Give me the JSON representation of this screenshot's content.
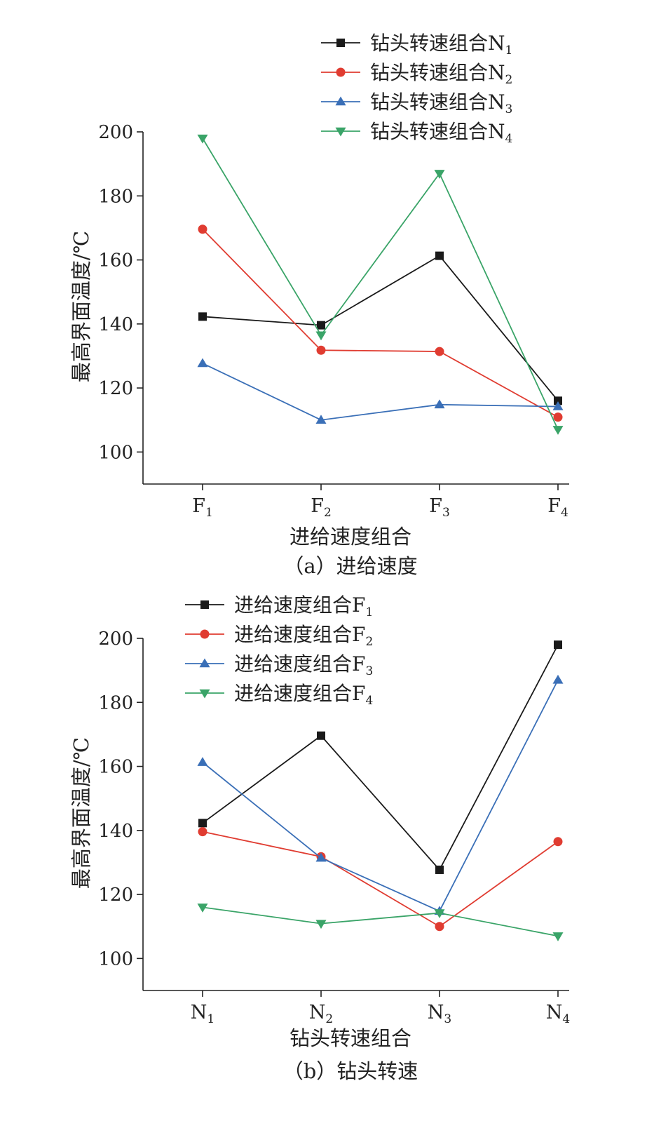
{
  "chart_data": [
    {
      "type": "line",
      "caption": "（a）进给速度",
      "xlabel": "进给速度组合",
      "ylabel": "最高界面温度/℃",
      "ylim": [
        90,
        200
      ],
      "yticks": [
        "100",
        "120",
        "140",
        "160",
        "180",
        "200"
      ],
      "categories": [
        {
          "base": "F",
          "sub": "1"
        },
        {
          "base": "F",
          "sub": "2"
        },
        {
          "base": "F",
          "sub": "3"
        },
        {
          "base": "F",
          "sub": "4"
        }
      ],
      "legend": {
        "placement": "top-right"
      },
      "series": [
        {
          "name": "钻头转速组合N",
          "sub": "1",
          "color": "#1a1a1a",
          "marker": "square",
          "values": [
            142.3,
            139.6,
            161.3,
            116.0
          ]
        },
        {
          "name": "钻头转速组合N",
          "sub": "2",
          "color": "#e03c31",
          "marker": "circle",
          "values": [
            169.6,
            131.8,
            131.4,
            110.9
          ]
        },
        {
          "name": "钻头转速组合N",
          "sub": "3",
          "color": "#3a6fb7",
          "marker": "triangle-up",
          "values": [
            127.7,
            110.0,
            114.8,
            114.2
          ]
        },
        {
          "name": "钻头转速组合N",
          "sub": "4",
          "color": "#3aa468",
          "marker": "triangle-down",
          "values": [
            198.0,
            136.5,
            187.0,
            107.0
          ]
        }
      ]
    },
    {
      "type": "line",
      "caption": "（b）钻头转速",
      "xlabel": "钻头转速组合",
      "ylabel": "最高界面温度/℃",
      "ylim": [
        90,
        200
      ],
      "yticks": [
        "100",
        "120",
        "140",
        "160",
        "180",
        "200"
      ],
      "categories": [
        {
          "base": "N",
          "sub": "1"
        },
        {
          "base": "N",
          "sub": "2"
        },
        {
          "base": "N",
          "sub": "3"
        },
        {
          "base": "N",
          "sub": "4"
        }
      ],
      "legend": {
        "placement": "top-left"
      },
      "series": [
        {
          "name": "进给速度组合F",
          "sub": "1",
          "color": "#1a1a1a",
          "marker": "square",
          "values": [
            142.3,
            169.6,
            127.7,
            198.0
          ]
        },
        {
          "name": "进给速度组合F",
          "sub": "2",
          "color": "#e03c31",
          "marker": "circle",
          "values": [
            139.6,
            131.8,
            110.0,
            136.5
          ]
        },
        {
          "name": "进给速度组合F",
          "sub": "3",
          "color": "#3a6fb7",
          "marker": "triangle-up",
          "values": [
            161.3,
            131.4,
            114.8,
            187.0
          ]
        },
        {
          "name": "进给速度组合F",
          "sub": "4",
          "color": "#3aa468",
          "marker": "triangle-down",
          "values": [
            116.0,
            110.9,
            114.2,
            107.0
          ]
        }
      ]
    }
  ]
}
